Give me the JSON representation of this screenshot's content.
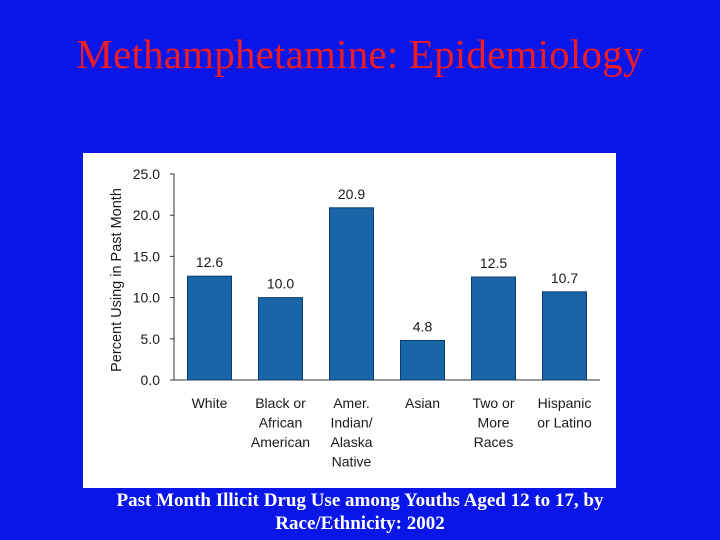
{
  "slide": {
    "title": "Methamphetamine: Epidemiology",
    "caption_lines": [
      "Past Month Illicit Drug Use among Youths Aged 12 to 17, by",
      "Race/Ethnicity: 2002"
    ]
  },
  "colors": {
    "background": "#0a16e8",
    "title": "#ee1c24",
    "bar": "#1a64a8",
    "panel": "#ffffff"
  },
  "chart_data": {
    "type": "bar",
    "categories": [
      [
        "White"
      ],
      [
        "Black or",
        "African",
        "American"
      ],
      [
        "Amer.",
        "Indian/",
        "Alaska",
        "Native"
      ],
      [
        "Asian"
      ],
      [
        "Two or",
        "More",
        "Races"
      ],
      [
        "Hispanic",
        "or Latino"
      ]
    ],
    "values": [
      12.6,
      10.0,
      20.9,
      4.8,
      12.5,
      10.7
    ],
    "value_labels": [
      "12.6",
      "10.0",
      "20.9",
      "4.8",
      "12.5",
      "10.7"
    ],
    "ylabel": "Percent Using in Past Month",
    "ylim": [
      0,
      25
    ],
    "yticks": [
      "0.0",
      "5.0",
      "10.0",
      "15.0",
      "20.0",
      "25.0"
    ],
    "grid": false
  }
}
